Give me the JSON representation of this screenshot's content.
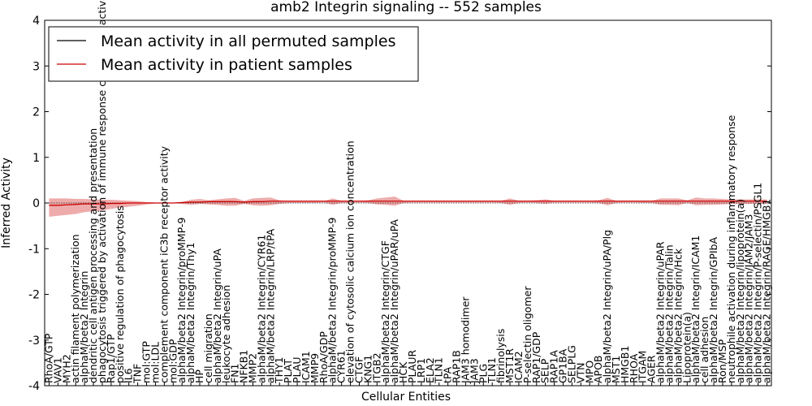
{
  "chart_data": {
    "type": "line",
    "title": "amb2 Integrin signaling -- 552 samples",
    "xlabel": "Cellular Entities",
    "ylabel": "Inferred Activity",
    "ylim": [
      -4,
      4
    ],
    "yticks": [
      -4,
      -3,
      -2,
      -1,
      0,
      1,
      2,
      3,
      4
    ],
    "grid": false,
    "legend_position": "top-left",
    "categories": [
      "RhoA/GTP",
      "VAV1",
      "MYH2",
      "actin filament polymerization",
      "alphaM/beta2 Integrin",
      "dendritic cell antigen processing and presentation",
      "phagocytosis triggered by activation of immune response cell surface activating receptor",
      "Rap1/GTP",
      "positive regulation of phagocytosis",
      "IL6",
      "TNF",
      "mol:GTP",
      "mol:LDL",
      "complement component iC3b receptor activity",
      "mol:GDP",
      "alphaM/beta2 Integrin/proMMP-9",
      "alphaM/beta2 Integrin/Thy1",
      "HP",
      "cell migration",
      "alphaM/beta2 Integrin/uPA",
      "leukocyte adhesion",
      "FN1",
      "NFKB1",
      "MMP2",
      "alphaM/beta2 Integrin/CYR61",
      "alphaM/beta2 Integrin/LRP/tPA",
      "THY1",
      "PLAT",
      "PLAU",
      "ICAM1",
      "MMP9",
      "RhoA/GDP",
      "alphaM/beta2 Integrin/proMMP-9",
      "CYR61",
      "elevation of cytosolic calcium ion concentration",
      "CTGF",
      "KNG1",
      "ITGB2",
      "alphaM/beta2 Integrin/CTGF",
      "alphaM/beta2 Integrin/uPAR/uPA",
      "HCK",
      "PLAUR",
      "LRP1",
      "ELA2",
      "TLN1",
      "tPA",
      "RAP1B",
      "JAM3 homodimer",
      "JAM3",
      "PLG",
      "TLN1",
      "fibrinolysis",
      "MST1R",
      "ICAM2",
      "P-selectin oligomer",
      "RAP1/GDP",
      "SELP",
      "RAP1A",
      "GP1BA",
      "SELPLG",
      "VTN",
      "MPO",
      "APOB",
      "alphaM/beta2 Integrin/uPA/Plg",
      "MST1",
      "HMGB1",
      "RHOA",
      "ITGAM",
      "AGER",
      "alphaM/beta2 Integrin/uPAR",
      "alphaM/beta2 Integrin/Talin",
      "alphaM/beta2 Integrin/Hck",
      "Lipoprotein(a)",
      "alphaM/beta2 Integrin/ICAM1",
      "cell adhesion",
      "alphaM/beta2 Integrin/GPIbA",
      "Ron/MSP",
      "neutrophile activation during inflammatory response",
      "alphaM/beta2 Integrin/lipoprotein(a)",
      "alphaM/beta2 Integrin/JAM2/JAM3",
      "alphaM/beta2 Integrin/P-selectin/PSGL1",
      "alphaM/beta2 Integrin/RAGE/HMGB1"
    ],
    "series": [
      {
        "name": "Mean activity in all permuted samples",
        "color": "#000000",
        "style": "dotted",
        "values": [
          0,
          0,
          0,
          0,
          0,
          0,
          0,
          0,
          0,
          0,
          0,
          0,
          0,
          0,
          0,
          0,
          0,
          0,
          0,
          0,
          0,
          0,
          0,
          0,
          0,
          0,
          0,
          0,
          0,
          0,
          0,
          0,
          0,
          0,
          0,
          0,
          0,
          0,
          0,
          0,
          0,
          0,
          0,
          0,
          0,
          0,
          0,
          0,
          0,
          0,
          0,
          0,
          0,
          0,
          0,
          0,
          0,
          0,
          0,
          0,
          0,
          0,
          0,
          0,
          0,
          0,
          0,
          0,
          0,
          0,
          0,
          0,
          0,
          0,
          0,
          0,
          0,
          0,
          0,
          0,
          0,
          0
        ]
      },
      {
        "name": "Mean activity in patient samples",
        "color": "#cc0000",
        "style": "solid",
        "values": [
          -0.05,
          -0.05,
          -0.04,
          -0.03,
          -0.02,
          -0.02,
          -0.02,
          -0.01,
          -0.01,
          0.0,
          0.0,
          0.0,
          0.0,
          0.0,
          0.0,
          0.01,
          0.02,
          0.02,
          0.03,
          0.03,
          0.03,
          0.03,
          0.02,
          0.03,
          0.03,
          0.04,
          0.04,
          0.04,
          0.04,
          0.04,
          0.04,
          0.04,
          0.04,
          0.04,
          0.04,
          0.04,
          0.04,
          0.04,
          0.04,
          0.04,
          0.04,
          0.04,
          0.04,
          0.04,
          0.04,
          0.04,
          0.04,
          0.04,
          0.04,
          0.04,
          0.04,
          0.04,
          0.04,
          0.04,
          0.04,
          0.04,
          0.04,
          0.04,
          0.04,
          0.04,
          0.04,
          0.04,
          0.04,
          0.04,
          0.04,
          0.04,
          0.04,
          0.04,
          0.04,
          0.04,
          0.04,
          0.04,
          0.04,
          0.04,
          0.04,
          0.04,
          0.04,
          0.04,
          0.04,
          0.04,
          0.04,
          0.04
        ]
      }
    ],
    "band": {
      "name": "patient spread",
      "color": "#e06666",
      "upper": [
        0.1,
        0.1,
        0.1,
        0.09,
        0.09,
        0.08,
        0.07,
        0.07,
        0.06,
        0.05,
        0.04,
        0.02,
        0.01,
        0.0,
        0.0,
        0.02,
        0.07,
        0.09,
        0.06,
        0.08,
        0.1,
        0.11,
        0.05,
        0.1,
        0.11,
        0.12,
        0.06,
        0.04,
        0.04,
        0.04,
        0.05,
        0.04,
        0.1,
        0.05,
        0.05,
        0.05,
        0.06,
        0.1,
        0.12,
        0.14,
        0.05,
        0.05,
        0.05,
        0.05,
        0.05,
        0.05,
        0.05,
        0.05,
        0.05,
        0.05,
        0.05,
        0.05,
        0.1,
        0.05,
        0.05,
        0.06,
        0.08,
        0.05,
        0.05,
        0.05,
        0.05,
        0.05,
        0.06,
        0.11,
        0.05,
        0.05,
        0.05,
        0.05,
        0.05,
        0.1,
        0.1,
        0.1,
        0.06,
        0.12,
        0.1,
        0.1,
        0.09,
        0.08,
        0.08,
        0.08,
        0.08,
        0.08
      ],
      "lower": [
        -0.3,
        -0.28,
        -0.26,
        -0.24,
        -0.2,
        -0.18,
        -0.16,
        -0.13,
        -0.1,
        -0.08,
        -0.06,
        -0.03,
        -0.01,
        0.0,
        0.0,
        -0.02,
        -0.04,
        -0.02,
        -0.03,
        -0.04,
        -0.06,
        -0.06,
        -0.02,
        -0.05,
        -0.06,
        -0.05,
        -0.02,
        0.0,
        0.0,
        0.0,
        0.0,
        0.01,
        -0.04,
        0.0,
        0.01,
        0.01,
        0.0,
        -0.03,
        -0.04,
        -0.06,
        0.0,
        0.01,
        0.01,
        0.01,
        0.01,
        0.01,
        0.01,
        0.01,
        0.01,
        0.01,
        0.01,
        0.0,
        -0.04,
        0.0,
        0.01,
        0.0,
        -0.02,
        0.01,
        0.01,
        0.01,
        0.01,
        0.01,
        0.0,
        -0.05,
        0.0,
        0.01,
        0.01,
        0.0,
        0.0,
        -0.04,
        -0.04,
        -0.05,
        0.0,
        -0.05,
        -0.04,
        -0.04,
        -0.03,
        -0.02,
        -0.02,
        -0.02,
        -0.02,
        -0.02
      ]
    }
  }
}
